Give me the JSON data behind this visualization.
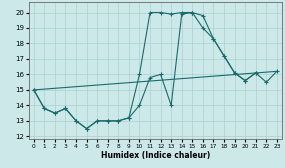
{
  "background_color": "#cce8e8",
  "grid_color": "#aad0d0",
  "line_color": "#1a6b6b",
  "xlim": [
    -0.5,
    23.5
  ],
  "ylim": [
    11.8,
    20.7
  ],
  "yticks": [
    12,
    13,
    14,
    15,
    16,
    17,
    18,
    19,
    20
  ],
  "xtick_labels": [
    "0",
    "1",
    "2",
    "3",
    "4",
    "5",
    "6",
    "7",
    "8",
    "9",
    "10",
    "11",
    "12",
    "13",
    "14",
    "15",
    "16",
    "17",
    "18",
    "19",
    "20",
    "21",
    "22",
    "23"
  ],
  "xlabel": "Humidex (Indice chaleur)",
  "series": [
    {
      "x": [
        0,
        1,
        2,
        3,
        4,
        5,
        6,
        7,
        8,
        9,
        10,
        11,
        12,
        13,
        14,
        15,
        16,
        17,
        18,
        19,
        20,
        21
      ],
      "y": [
        15,
        13.8,
        13.5,
        13.8,
        13.0,
        12.5,
        13.0,
        13.0,
        13.0,
        13.2,
        14.0,
        15.8,
        16.0,
        14.0,
        19.9,
        20.0,
        19.8,
        18.3,
        17.2,
        16.1,
        15.6,
        16.1
      ]
    },
    {
      "x": [
        0,
        1,
        2,
        3,
        4,
        5,
        6,
        7,
        8,
        9,
        10,
        11,
        12,
        13,
        14,
        15,
        16,
        17,
        18,
        19,
        20,
        21,
        22,
        23
      ],
      "y": [
        15,
        13.8,
        13.5,
        13.8,
        13.0,
        12.5,
        13.0,
        13.0,
        13.0,
        13.2,
        16.0,
        20.0,
        20.0,
        19.9,
        20.0,
        20.0,
        19.0,
        18.3,
        17.2,
        16.1,
        15.6,
        16.1,
        15.5,
        16.2
      ]
    },
    {
      "x": [
        0,
        23
      ],
      "y": [
        15.0,
        16.2
      ]
    }
  ]
}
